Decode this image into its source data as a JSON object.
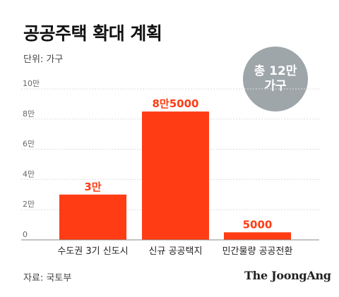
{
  "title": "공공주택 확대 계획",
  "unit_label": "단위: 가구",
  "total_badge": {
    "line1": "총 12만",
    "line2": "가구"
  },
  "source": "자료: 국토부",
  "brand": "The JoongAng",
  "colors": {
    "bar": "#ff3c14",
    "label": "#ff3c14",
    "badge": "#9ea6aa",
    "axis": "#888888",
    "gridline": "#dddddd"
  },
  "chart_data": {
    "type": "bar",
    "categories": [
      "수도권 3기 신도시",
      "신규 공공택지",
      "민간물량 공공전환"
    ],
    "values": [
      30000,
      85000,
      5000
    ],
    "data_labels": [
      "3만",
      "8만5000",
      "5000"
    ],
    "ylim": [
      0,
      100000
    ],
    "yticks": [
      0,
      20000,
      40000,
      60000,
      80000,
      100000
    ],
    "ytick_labels": [
      "0",
      "2만",
      "4만",
      "6만",
      "8만",
      "10만"
    ],
    "grid": true,
    "xlabel": "",
    "ylabel": ""
  }
}
